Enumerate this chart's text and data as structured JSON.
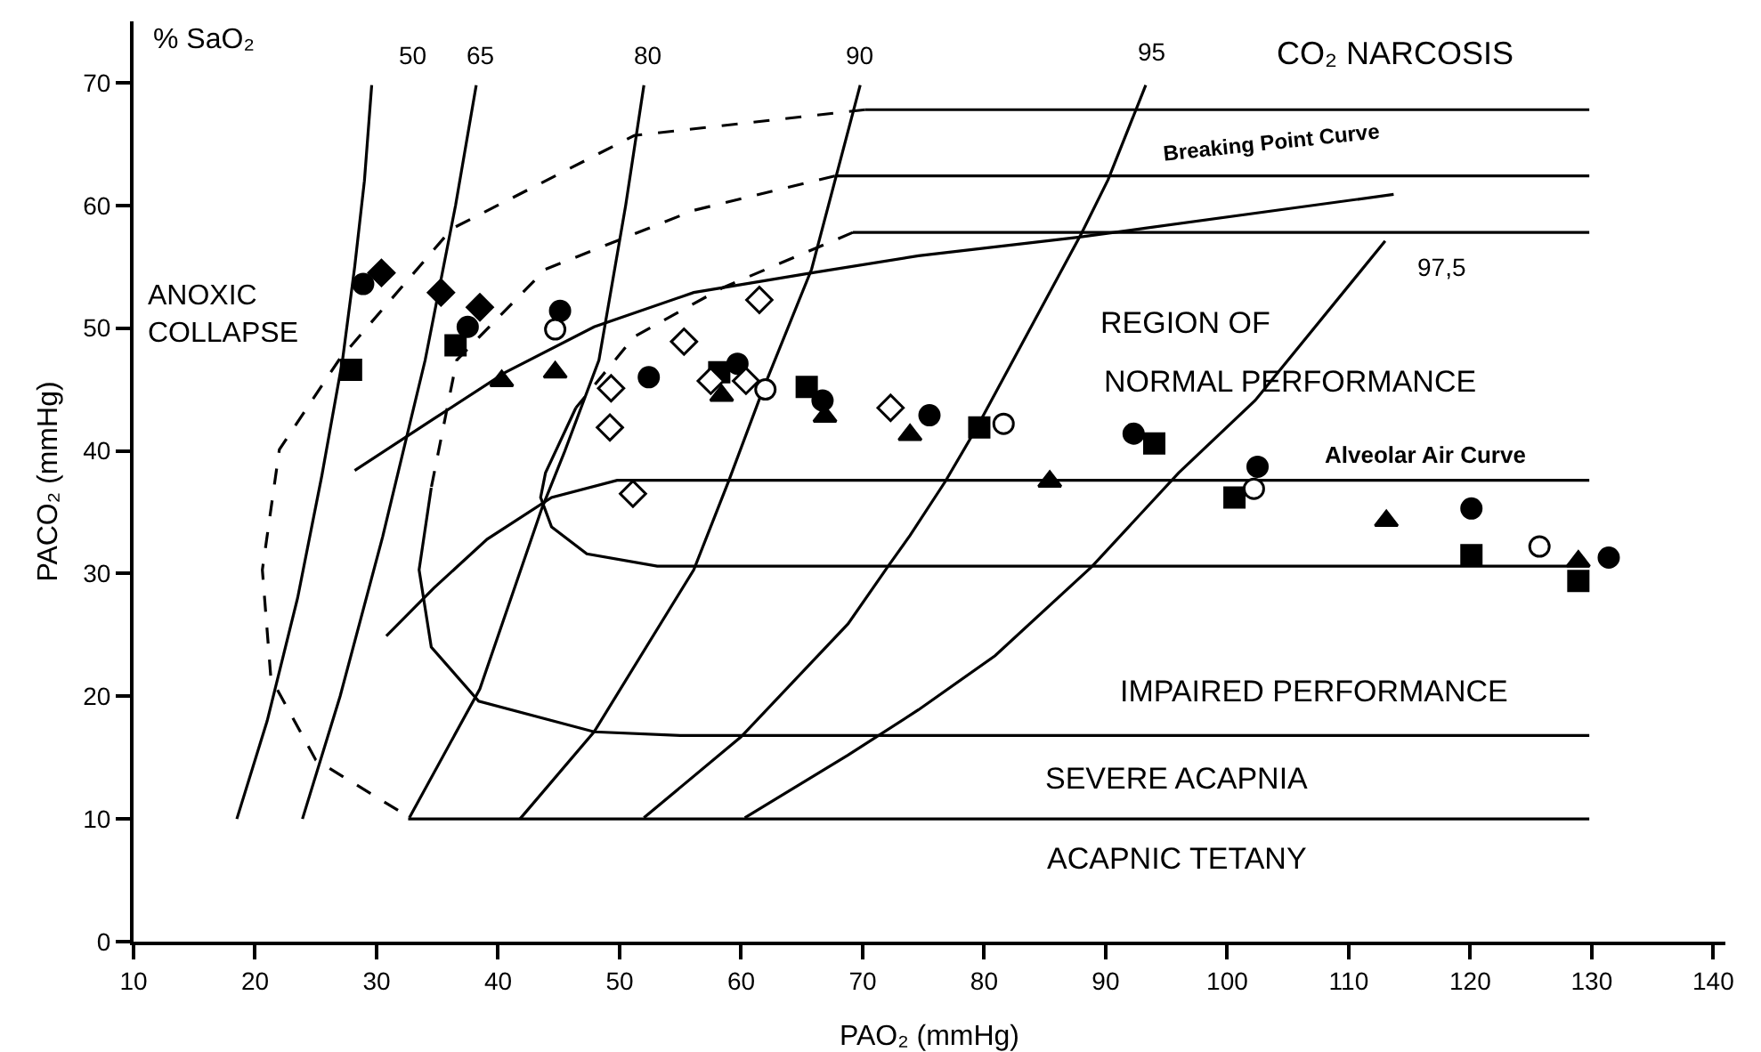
{
  "chart_data": {
    "type": "scatter",
    "xlabel": "PAO₂ (mmHg)",
    "ylabel": "PACO₂ (mmHg)",
    "xlim": [
      10,
      141
    ],
    "ylim": [
      0,
      75
    ],
    "xticks": [
      10,
      20,
      30,
      40,
      50,
      60,
      70,
      80,
      90,
      100,
      110,
      120,
      130,
      140
    ],
    "yticks": [
      0,
      10,
      20,
      30,
      40,
      50,
      60,
      70
    ],
    "grid": false,
    "series": [
      {
        "type": "line",
        "color": "#000000",
        "marker": "none",
        "line_style": "solid",
        "x": [
          29.6,
          29.0,
          28.2,
          27.2,
          25.5,
          23.5,
          21.0,
          18.5
        ],
        "values": [
          69.8,
          62,
          55,
          47.4,
          38,
          28,
          18,
          10
        ]
      },
      {
        "type": "line",
        "color": "#000000",
        "marker": "none",
        "line_style": "solid",
        "x": [
          38.2,
          36.5,
          34.0,
          30.5,
          27.0,
          23.9
        ],
        "values": [
          69.8,
          60,
          47.4,
          33,
          20,
          10
        ]
      },
      {
        "type": "line",
        "color": "#000000",
        "marker": "none",
        "line_style": "solid",
        "x": [
          52.0,
          50.5,
          48.3,
          45.5,
          43.6,
          38.5,
          32.7
        ],
        "values": [
          69.8,
          60,
          47.4,
          40,
          35.3,
          20.6,
          10.1
        ]
      },
      {
        "type": "line",
        "color": "#000000",
        "marker": "none",
        "line_style": "solid",
        "x": [
          69.8,
          65.8,
          61.8,
          59.0,
          56.1,
          47.9,
          41.8
        ],
        "values": [
          69.8,
          54.8,
          45,
          37.6,
          30.3,
          17.1,
          10
        ]
      },
      {
        "type": "line",
        "color": "#000000",
        "marker": "none",
        "line_style": "solid",
        "x": [
          93.3,
          90.2,
          88.0,
          79.4,
          76.8,
          73.9,
          72.1,
          68.8,
          60.0,
          52.0
        ],
        "values": [
          69.8,
          62.1,
          57.7,
          41.9,
          37.5,
          33.1,
          30.6,
          25.9,
          16.7,
          10.1
        ]
      },
      {
        "type": "line",
        "color": "#000000",
        "marker": "none",
        "line_style": "solid",
        "x": [
          113.0,
          102.3,
          96.0,
          88.9,
          80.9,
          74.6,
          68.8,
          60.3
        ],
        "values": [
          57.1,
          44.1,
          38.2,
          30.6,
          23.3,
          18.9,
          15.2,
          10.1
        ]
      },
      {
        "type": "line",
        "color": "#000000",
        "marker": "none",
        "line_style": "solid",
        "x": [
          28.2,
          34.7,
          40.6,
          47.9,
          56.1,
          65.8,
          74.6,
          87.7,
          113.7
        ],
        "values": [
          38.4,
          42.6,
          46.4,
          50.1,
          52.9,
          54.5,
          55.9,
          57.4,
          60.9
        ]
      },
      {
        "type": "line",
        "color": "#000000",
        "marker": "none",
        "line_style": "solid",
        "x": [
          30.8,
          34.7,
          39.1,
          44.4,
          49.8,
          129.8
        ],
        "values": [
          24.9,
          28.8,
          32.8,
          36.2,
          37.6,
          37.6
        ]
      },
      {
        "type": "line",
        "color": "#000000",
        "marker": "none",
        "line_style": "dashed",
        "x": [
          70.2,
          51.2,
          36.2,
          26.9,
          22.0,
          20.6,
          21.3,
          25.0,
          32.6
        ],
        "values": [
          67.8,
          65.7,
          58.1,
          47.4,
          40.1,
          30.3,
          21.5,
          14.8,
          10.2
        ]
      },
      {
        "type": "line",
        "color": "#000000",
        "marker": "none",
        "line_style": "solid",
        "x": [
          70.2,
          129.8
        ],
        "values": [
          67.8,
          67.8
        ]
      },
      {
        "type": "line",
        "color": "#000000",
        "marker": "none",
        "line_style": "solid",
        "x": [
          32.6,
          129.8
        ],
        "values": [
          10,
          10
        ]
      },
      {
        "type": "line",
        "color": "#000000",
        "marker": "none",
        "line_style": "dashed",
        "x": [
          67.7,
          56.1,
          43.9,
          36.6,
          34.5
        ],
        "values": [
          62.4,
          59.6,
          54.8,
          47.4,
          37
        ]
      },
      {
        "type": "line",
        "color": "#000000",
        "marker": "none",
        "line_style": "solid",
        "x": [
          67.7,
          129.8
        ],
        "values": [
          62.4,
          62.4
        ]
      },
      {
        "type": "line",
        "color": "#000000",
        "marker": "none",
        "line_style": "solid",
        "x": [
          34.5,
          33.5,
          34.5,
          38.4,
          47.9,
          55.0,
          129.8
        ],
        "values": [
          37,
          30.3,
          24,
          19.6,
          17.1,
          16.8,
          16.8
        ]
      },
      {
        "type": "line",
        "color": "#000000",
        "marker": "none",
        "line_style": "dashed",
        "x": [
          69.2,
          58.5,
          51.2,
          46.4
        ],
        "values": [
          57.8,
          53.3,
          49.3,
          43.5
        ]
      },
      {
        "type": "line",
        "color": "#000000",
        "marker": "none",
        "line_style": "solid",
        "x": [
          69.2,
          129.8
        ],
        "values": [
          57.8,
          57.8
        ]
      },
      {
        "type": "line",
        "color": "#000000",
        "marker": "none",
        "line_style": "solid",
        "x": [
          46.4,
          43.9,
          43.5,
          44.4,
          47.3,
          53.1,
          129.8
        ],
        "values": [
          43.5,
          38.2,
          36.2,
          33.8,
          31.6,
          30.6,
          30.6
        ]
      },
      {
        "color": "#000000",
        "marker": "circle",
        "x": [
          28.9,
          45.1,
          37.5,
          52.4,
          59.7,
          66.7,
          75.5,
          92.3,
          102.5,
          120.1,
          131.4
        ],
        "values": [
          53.6,
          51.4,
          50.1,
          46.0,
          47.1,
          44.1,
          42.9,
          41.4,
          38.7,
          35.3,
          31.3
        ]
      },
      {
        "color": "#000000",
        "marker": "square",
        "x": [
          27.9,
          36.5,
          58.2,
          65.4,
          79.6,
          94.0,
          100.6,
          120.1,
          128.9
        ],
        "values": [
          46.6,
          48.6,
          46.4,
          45.2,
          41.9,
          40.6,
          36.2,
          31.5,
          29.4
        ]
      },
      {
        "color": "#000000",
        "marker": "triangle",
        "x": [
          40.3,
          44.7,
          58.4,
          66.9,
          73.9,
          85.4,
          113.1,
          128.9
        ],
        "values": [
          45.7,
          46.4,
          44.5,
          42.8,
          41.3,
          37.5,
          34.3,
          31.0
        ]
      },
      {
        "color": "#000000",
        "marker": "diamond",
        "x": [
          30.4,
          35.3,
          38.5
        ],
        "values": [
          54.5,
          52.9,
          51.7
        ]
      },
      {
        "color": "#ffffff",
        "marker": "circle",
        "x": [
          44.7,
          62.0,
          81.6,
          102.2,
          125.7
        ],
        "values": [
          49.9,
          45.0,
          42.2,
          36.9,
          32.2
        ]
      },
      {
        "color": "#ffffff",
        "marker": "diamond",
        "x": [
          61.5,
          55.3,
          49.3,
          49.2,
          57.5,
          60.4,
          72.3,
          51.1
        ],
        "values": [
          52.3,
          48.9,
          45.1,
          41.9,
          45.7,
          45.7,
          43.5,
          36.5
        ]
      }
    ],
    "annotations": [
      "% SaO₂",
      "50",
      "65",
      "80",
      "90",
      "95",
      "97,5",
      "CO₂ NARCOSIS",
      "Breaking Point Curve",
      "ANOXIC\nCOLLAPSE",
      "REGION OF",
      "NORMAL PERFORMANCE",
      "Alveolar Air Curve",
      "IMPAIRED PERFORMANCE",
      "SEVERE ACAPNIA",
      "ACAPNIC TETANY"
    ]
  }
}
